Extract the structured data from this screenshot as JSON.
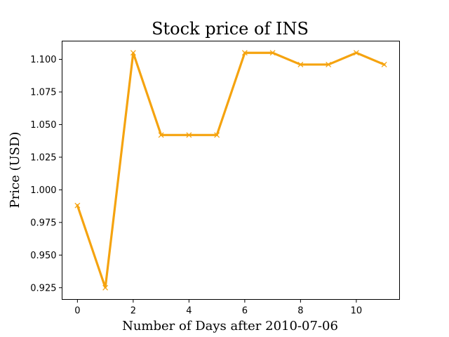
{
  "chart_data": {
    "type": "line",
    "title": "Stock price of INS",
    "xlabel": "Number of Days after 2010-07-06",
    "ylabel": "Price (USD)",
    "x": [
      0,
      1,
      2,
      3,
      4,
      5,
      6,
      7,
      8,
      9,
      10,
      11
    ],
    "series": [
      {
        "values": [
          0.988,
          0.925,
          1.105,
          1.042,
          1.042,
          1.042,
          1.105,
          1.105,
          1.096,
          1.096,
          1.105,
          1.096
        ],
        "color": "#f5a30f",
        "marker": "x"
      }
    ],
    "xlim": [
      -0.55,
      11.55
    ],
    "ylim": [
      0.916,
      1.114
    ],
    "xticks": [
      0,
      2,
      4,
      6,
      8,
      10
    ],
    "xtick_labels": [
      "0",
      "2",
      "4",
      "6",
      "8",
      "10"
    ],
    "yticks": [
      0.925,
      0.95,
      0.975,
      1.0,
      1.025,
      1.05,
      1.075,
      1.1
    ],
    "ytick_labels": [
      "0.925",
      "0.950",
      "0.975",
      "1.000",
      "1.025",
      "1.050",
      "1.075",
      "1.100"
    ],
    "grid": false,
    "legend": "none"
  }
}
